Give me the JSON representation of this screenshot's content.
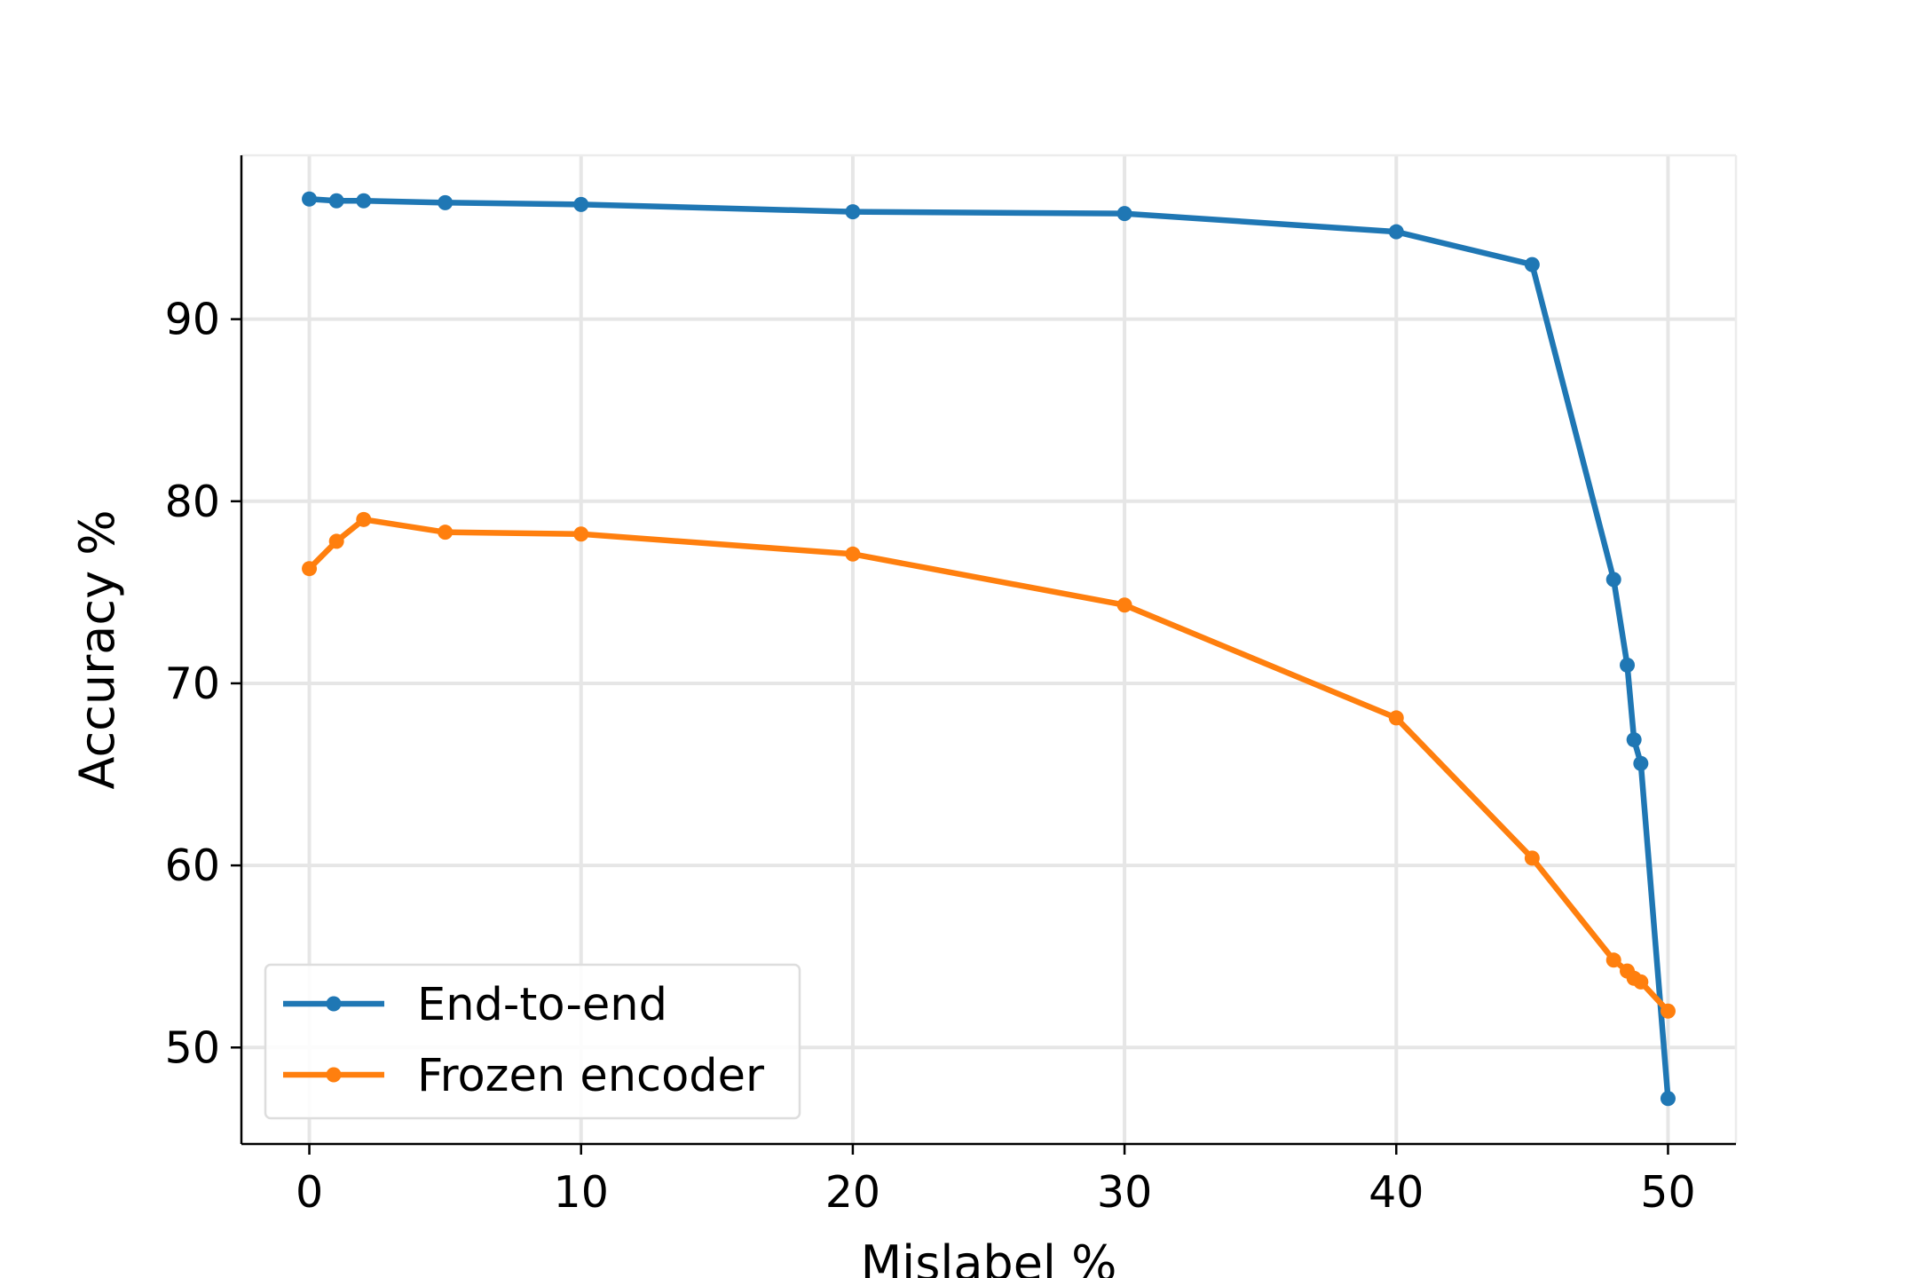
{
  "chart_data": {
    "type": "line",
    "title": "",
    "xlabel": "Mislabel %",
    "ylabel": "Accuracy %",
    "xlim": [
      -2.5,
      52.5
    ],
    "ylim": [
      44.7,
      99.0
    ],
    "xticks": [
      0,
      10,
      20,
      30,
      40,
      50
    ],
    "yticks": [
      50,
      60,
      70,
      80,
      90
    ],
    "grid": true,
    "legend": "lower-left",
    "series": [
      {
        "name": "End-to-end",
        "color": "#1f77b4",
        "x": [
          0,
          1,
          2,
          5,
          10,
          20,
          30,
          40,
          45,
          48,
          48.5,
          48.75,
          49,
          50
        ],
        "y": [
          96.6,
          96.5,
          96.5,
          96.4,
          96.3,
          95.9,
          95.8,
          94.8,
          93.0,
          75.7,
          71.0,
          66.9,
          65.6,
          47.2
        ]
      },
      {
        "name": "Frozen encoder",
        "color": "#ff7f0e",
        "x": [
          0,
          1,
          2,
          5,
          10,
          20,
          30,
          40,
          45,
          48,
          48.5,
          48.75,
          49,
          50
        ],
        "y": [
          76.3,
          77.8,
          79.0,
          78.3,
          78.2,
          77.1,
          74.3,
          68.1,
          60.4,
          54.8,
          54.2,
          53.8,
          53.6,
          52.0
        ]
      }
    ]
  }
}
